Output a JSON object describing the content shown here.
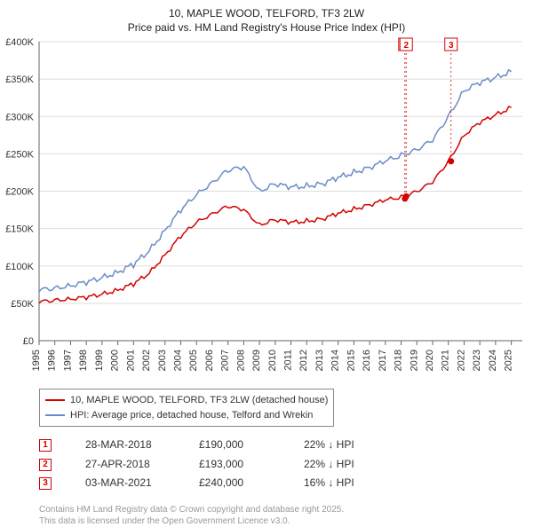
{
  "title_line1": "10, MAPLE WOOD, TELFORD, TF3 2LW",
  "title_line2": "Price paid vs. HM Land Registry's House Price Index (HPI)",
  "chart": {
    "type": "line",
    "background_color": "#ffffff",
    "grid_color": "#dddddd",
    "axis_color": "#666666",
    "tick_fontsize": 11,
    "tick_color": "#333333",
    "x": {
      "min": 1995,
      "max": 2025.7,
      "ticks": [
        1995,
        1996,
        1997,
        1998,
        1999,
        2000,
        2001,
        2002,
        2003,
        2004,
        2005,
        2006,
        2007,
        2008,
        2009,
        2010,
        2011,
        2012,
        2013,
        2014,
        2015,
        2016,
        2017,
        2018,
        2019,
        2020,
        2021,
        2022,
        2023,
        2024,
        2025
      ]
    },
    "y": {
      "min": 0,
      "max": 400000,
      "ticks": [
        0,
        50000,
        100000,
        150000,
        200000,
        250000,
        300000,
        350000,
        400000
      ],
      "tick_labels": [
        "£0",
        "£50K",
        "£100K",
        "£150K",
        "£200K",
        "£250K",
        "£300K",
        "£350K",
        "£400K"
      ]
    },
    "series": [
      {
        "name": "price_paid",
        "color": "#d40000",
        "width": 1.5,
        "points": [
          [
            1995,
            52000
          ],
          [
            1996,
            54000
          ],
          [
            1997,
            56000
          ],
          [
            1998,
            58000
          ],
          [
            1999,
            62000
          ],
          [
            2000,
            68000
          ],
          [
            2001,
            76000
          ],
          [
            2002,
            90000
          ],
          [
            2003,
            115000
          ],
          [
            2004,
            140000
          ],
          [
            2005,
            158000
          ],
          [
            2006,
            170000
          ],
          [
            2007,
            180000
          ],
          [
            2008,
            175000
          ],
          [
            2009,
            155000
          ],
          [
            2010,
            162000
          ],
          [
            2011,
            158000
          ],
          [
            2012,
            160000
          ],
          [
            2013,
            163000
          ],
          [
            2014,
            170000
          ],
          [
            2015,
            176000
          ],
          [
            2016,
            182000
          ],
          [
            2017,
            188000
          ],
          [
            2018,
            192000
          ],
          [
            2019,
            200000
          ],
          [
            2020,
            212000
          ],
          [
            2021,
            240000
          ],
          [
            2022,
            275000
          ],
          [
            2023,
            292000
          ],
          [
            2024,
            302000
          ],
          [
            2025,
            312000
          ]
        ]
      },
      {
        "name": "hpi",
        "color": "#6a8cc7",
        "width": 1.5,
        "points": [
          [
            1995,
            68000
          ],
          [
            1996,
            70000
          ],
          [
            1997,
            74000
          ],
          [
            1998,
            78000
          ],
          [
            1999,
            84000
          ],
          [
            2000,
            92000
          ],
          [
            2001,
            102000
          ],
          [
            2002,
            120000
          ],
          [
            2003,
            148000
          ],
          [
            2004,
            175000
          ],
          [
            2005,
            195000
          ],
          [
            2006,
            212000
          ],
          [
            2007,
            228000
          ],
          [
            2008,
            232000
          ],
          [
            2009,
            200000
          ],
          [
            2010,
            210000
          ],
          [
            2011,
            205000
          ],
          [
            2012,
            207000
          ],
          [
            2013,
            210000
          ],
          [
            2014,
            218000
          ],
          [
            2015,
            225000
          ],
          [
            2016,
            232000
          ],
          [
            2017,
            240000
          ],
          [
            2018,
            248000
          ],
          [
            2019,
            256000
          ],
          [
            2020,
            268000
          ],
          [
            2021,
            300000
          ],
          [
            2022,
            335000
          ],
          [
            2023,
            345000
          ],
          [
            2024,
            352000
          ],
          [
            2025,
            360000
          ]
        ]
      }
    ],
    "sale_markers": [
      {
        "n": "1",
        "x": 2018.24,
        "y": 190000,
        "color": "#d40000"
      },
      {
        "n": "2",
        "x": 2018.32,
        "y": 193000,
        "color": "#d40000"
      },
      {
        "n": "3",
        "x": 2021.17,
        "y": 240000,
        "color": "#d40000"
      }
    ]
  },
  "legend": {
    "items": [
      {
        "color": "#d40000",
        "label": "10, MAPLE WOOD, TELFORD, TF3 2LW (detached house)"
      },
      {
        "color": "#6a8cc7",
        "label": "HPI: Average price, detached house, Telford and Wrekin"
      }
    ]
  },
  "sales": [
    {
      "n": "1",
      "color": "#d40000",
      "date": "28-MAR-2018",
      "price": "£190,000",
      "pct": "22% ↓ HPI"
    },
    {
      "n": "2",
      "color": "#d40000",
      "date": "27-APR-2018",
      "price": "£193,000",
      "pct": "22% ↓ HPI"
    },
    {
      "n": "3",
      "color": "#d40000",
      "date": "03-MAR-2021",
      "price": "£240,000",
      "pct": "16% ↓ HPI"
    }
  ],
  "footer_line1": "Contains HM Land Registry data © Crown copyright and database right 2025.",
  "footer_line2": "This data is licensed under the Open Government Licence v3.0."
}
